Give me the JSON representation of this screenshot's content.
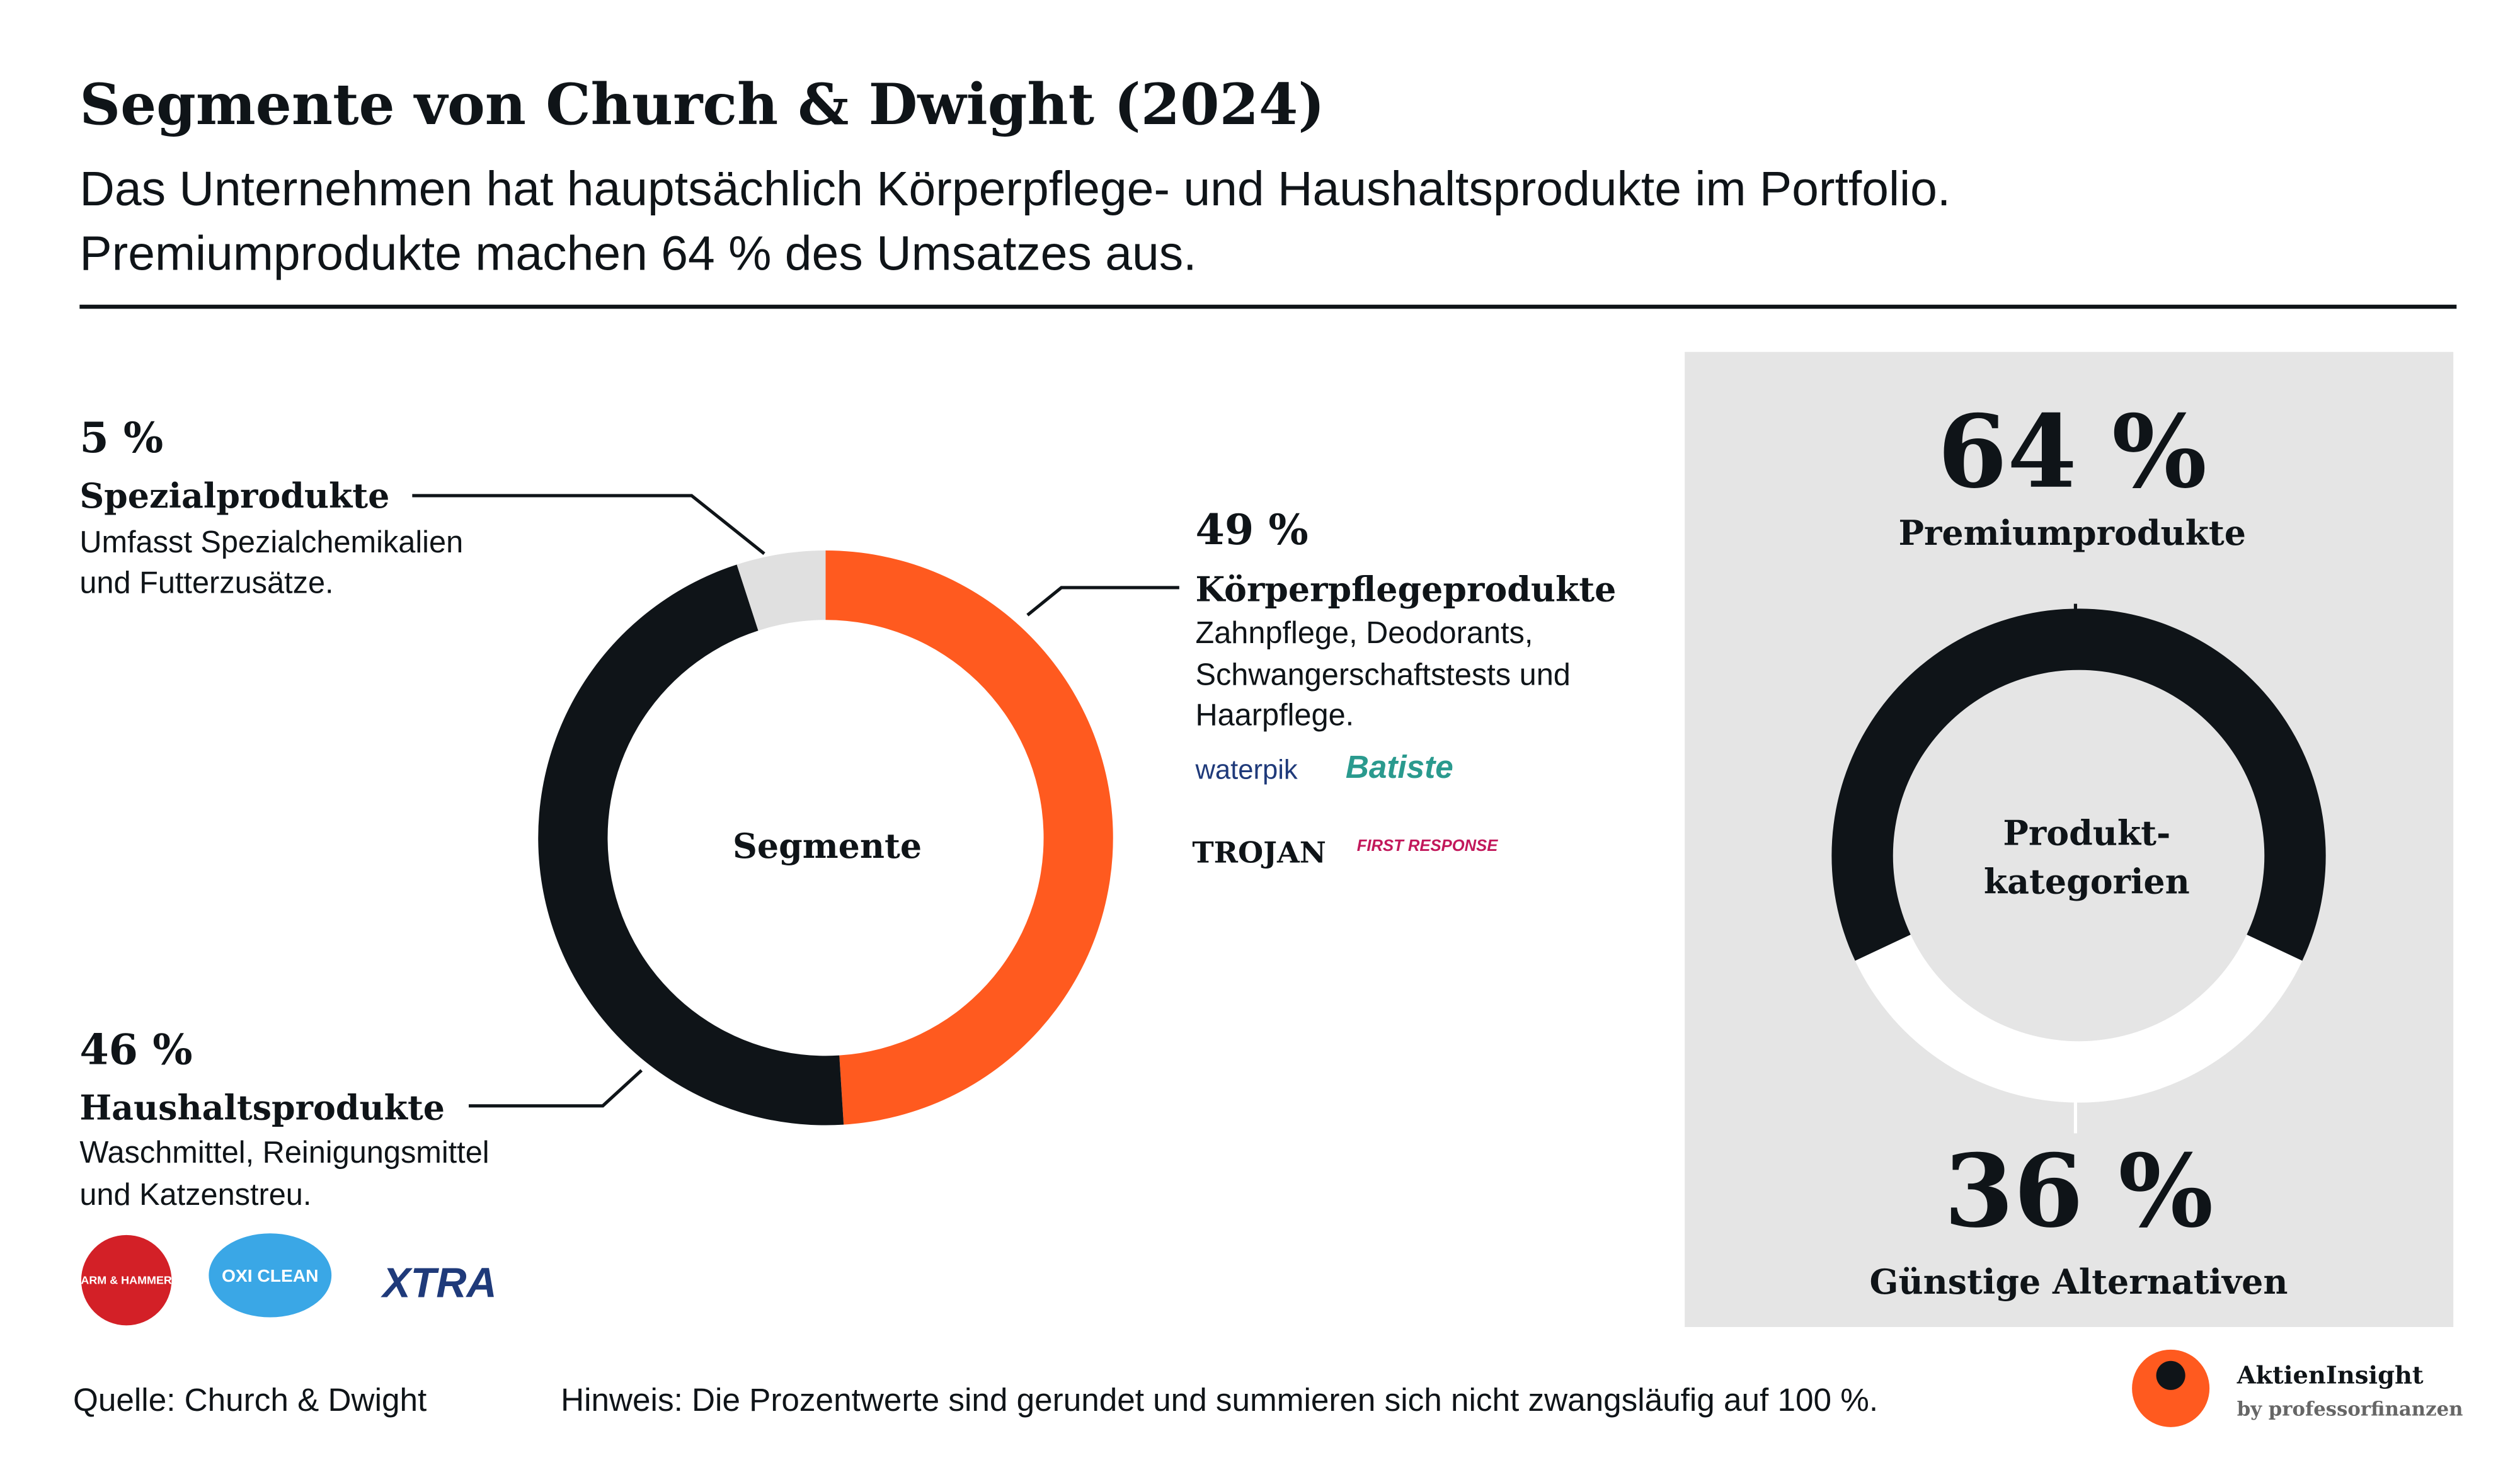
{
  "title": "Segmente von Church & Dwight (2024)",
  "subtitle": [
    "Das Unternehmen hat hauptsächlich Körperpflege- und Haushaltsprodukte im Portfolio.",
    "Premiumprodukte machen 64 % des Umsatzes aus."
  ],
  "chart_data": [
    {
      "type": "donut",
      "center_label": [
        "Segmente"
      ],
      "categories": [
        "Körperpflegeprodukte",
        "Haushaltsprodukte",
        "Spezialprodukte"
      ],
      "values": [
        49,
        46,
        5
      ],
      "value_labels": [
        "49 %",
        "46 %",
        "5 %"
      ],
      "descriptions": [
        [
          "Zahnpflege, Deodorants,",
          "Schwangerschaftstests und",
          "Haarpflege."
        ],
        [
          "Waschmittel, Reinigungsmittel",
          "und Katzenstreu."
        ],
        [
          "Umfasst Spezialchemikalien",
          "und Futterzusätze."
        ]
      ],
      "colors": [
        "#ff5a1f",
        "#0f1418",
        "#e0e0e0"
      ]
    },
    {
      "type": "donut",
      "center_label": [
        "Produkt-",
        "kategorien"
      ],
      "categories": [
        "Premiumprodukte",
        "Günstige Alternativen"
      ],
      "values": [
        64,
        36
      ],
      "value_labels": [
        "64 %",
        "36 %"
      ],
      "colors": [
        "#0f1418",
        "#ffffff"
      ]
    }
  ],
  "logos": {
    "personal_care": [
      "waterpik",
      "Batiste",
      "TROJAN",
      "FIRST RESPONSE"
    ],
    "household": [
      "ARM & HAMMER",
      "OXI CLEAN",
      "XTRA"
    ]
  },
  "source": "Quelle: Church & Dwight",
  "note": "Hinweis: Die Prozentwerte sind gerundet und summieren sich nicht zwangsläufig auf 100 %.",
  "brand": "AktienInsight",
  "brand_sub": "by professorfinanzen"
}
